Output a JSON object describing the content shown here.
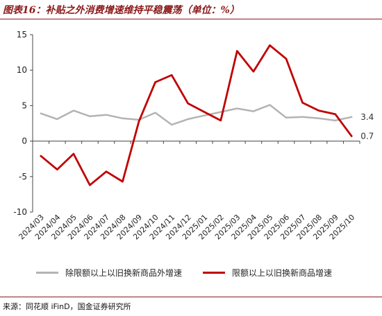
{
  "header": {
    "title": "图表16：补贴之外消费增速维持平稳震荡（单位：%）"
  },
  "footer": {
    "source": "来源：同花顺 iFinD，国金证券研究所"
  },
  "colors": {
    "accent": "#8b1a1a",
    "series_gray": "#b3b3b3",
    "series_red": "#c00000"
  },
  "chart_data": {
    "type": "line",
    "x": [
      "2024/03",
      "2024/04",
      "2024/05",
      "2024/06",
      "2024/07",
      "2024/08",
      "2024/09",
      "2024/10",
      "2024/11",
      "2024/12",
      "2025/01",
      "2025/02",
      "2025/03",
      "2025/04",
      "2025/05",
      "2025/06",
      "2025/07",
      "2025/08",
      "2025/09",
      "2025/10"
    ],
    "ylim": [
      -10,
      15
    ],
    "yticks": [
      -10,
      -5,
      0,
      5,
      10,
      15
    ],
    "grid": false,
    "legend_position": "bottom",
    "series": [
      {
        "name": "除限额以上以旧换新商品外增速",
        "color": "#b3b3b3",
        "values": [
          3.9,
          3.1,
          4.3,
          3.5,
          3.7,
          3.2,
          3.0,
          4.0,
          2.3,
          3.1,
          3.6,
          4.1,
          4.6,
          4.2,
          5.1,
          3.3,
          3.4,
          3.2,
          2.9,
          3.4
        ]
      },
      {
        "name": "限额以上以旧换新商品增速",
        "color": "#c00000",
        "values": [
          -2.1,
          -4.0,
          -1.8,
          -6.2,
          -4.3,
          -5.7,
          2.8,
          8.3,
          9.3,
          5.3,
          4.1,
          2.9,
          12.7,
          9.8,
          13.5,
          11.6,
          5.4,
          4.3,
          3.8,
          0.7
        ]
      }
    ],
    "end_labels": [
      "3.4",
      "0.7"
    ]
  }
}
